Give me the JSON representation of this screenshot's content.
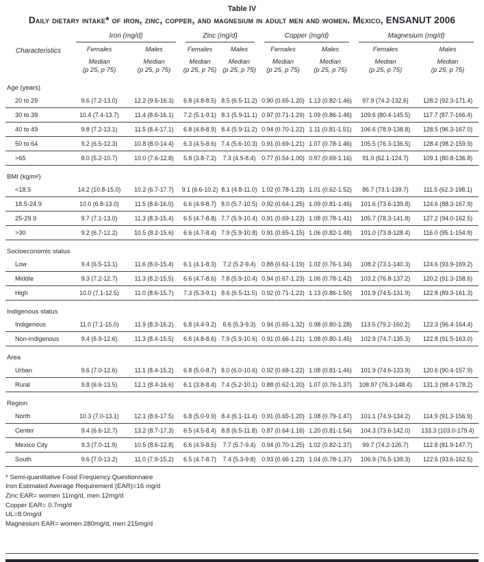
{
  "page": {
    "title": "Table IV",
    "subtitle": "Daily dietary intake* of iron, zinc, copper, and magnesium in adult men and women. Mexico, ENSANUT 2006"
  },
  "colors": {
    "text": "#24242c",
    "rule": "#3f3f47",
    "thick_rule": "#23232b"
  },
  "table": {
    "characteristics_header": "Characteristics",
    "groups": [
      "Iron (mg/d)",
      "Zinc (mg/d)",
      "Copper (mg/d)",
      "Magnesium (mg/d)"
    ],
    "sex_labels": [
      "Females",
      "Males"
    ],
    "median_label": "Median",
    "percentile_label": "(p 25, p 75)",
    "sections": [
      {
        "label": "Age (years)",
        "rows": [
          {
            "label": "20 to 29",
            "values": [
              "9.6 (7.2-13.0)",
              "12.2 (9.6-16.3)",
              "6.8 (4.8-8.5)",
              "8.5 (6.5-11.2)",
              "0.90 (0.65-1.20)",
              "1.13 (0.82-1.46)",
              "97.9 (74.2-132.6)",
              "128.2 (92.3-171.4)"
            ]
          },
          {
            "label": "30 to 39",
            "values": [
              "10.4 (7.4-13.7)",
              "11.4 (8.6-16.1)",
              "7.2 (5.1-9.1)",
              "8.1 (5.9-11.1)",
              "0.97 (0.71-1.29)",
              "1.09 (0.86-1.46)",
              "109.6 (80.4-145.5)",
              "117.7 (87.7-166.4)"
            ]
          },
          {
            "label": "40 to 49",
            "values": [
              "9.8 (7.2-13.1)",
              "11.5 (8.4-17.1)",
              "6.8 (4.8-8.9)",
              "8.4 (5.9-11.2)",
              "0.94 (0.70-1.22)",
              "1.11 (0.81-1.51)",
              "106.6 (78.9-138.8)",
              "128.5 (96.3-167.0)"
            ]
          },
          {
            "label": "50 to 64",
            "values": [
              "9.2 (6.5-12.3)",
              "10.8 (8.0-14.4)",
              "6.3 (4.5-8.6)",
              "7.4 (5.6-10.3)",
              "0.91 (0.69-1.21)",
              "1.07 (0.78-1.46)",
              "105.5 (76.3-136.5)",
              "128.4 (98.2-159.9)"
            ]
          },
          {
            "label": ">65",
            "values": [
              "8.0 (5.2-10.7)",
              "10.0 (7.6-12.8)",
              "5.8 (3.8-7.2)",
              "7.3 (4.9-8.4)",
              "0.77 (0.54-1.00)",
              "0.97 (0.69-1.16)",
              "91.0 (62.1-124.7)",
              "109.1 (80.8-136.8)"
            ]
          }
        ]
      },
      {
        "label": "BMI (kg/m²)",
        "rows": [
          {
            "label": "<18.5",
            "values": [
              "14.2 (10.8-15.0)",
              "10.2 (6.7-17.7)",
              "9.1 (6.6-10.2)",
              "8.1 (4.8-11.0)",
              "1.02 (0.78-1.23)",
              "1.01 (0.62-1.52)",
              "86.7 (73.1-139.7)",
              "111.5 (62.3-198.1)"
            ]
          },
          {
            "label": "18.5-24.9",
            "values": [
              "10.0 (6.8-13.0)",
              "11.5 (8.6-16.0)",
              "6.6 (4.9-8.7)",
              "8.0 (5.7-10.5)",
              "0.92 (0.64-1.25)",
              "1.09 (0.81-1.46)",
              "101.6 (73.6-139.8)",
              "124.6 (88.3-167.9)"
            ]
          },
          {
            "label": "25-29.9",
            "values": [
              "9.7 (7.1-13.0)",
              "11.3 (8.3-15.4)",
              "6.5 (4.7-8.8)",
              "7.7 (5.9-10.4)",
              "0.91 (0.69-1.23)",
              "1.08 (0.78-1.41)",
              "105.7 (78.3-141.8)",
              "127.2 (94.0-162.5)"
            ]
          },
          {
            "label": ">30",
            "values": [
              "9.2 (6.7-12.2)",
              "10.5 (8.2-15.6)",
              "6.6 (4.7-8.4)",
              "7.9 (5.9-10.8)",
              "0.91 (0.65-1.15)",
              "1.06 (0.82-1.48)",
              "101.0 (73.8-128.4)",
              "116.0 (95.1-154.9)"
            ]
          }
        ]
      },
      {
        "label": "Socioeconomic status",
        "rows": [
          {
            "label": "Low",
            "values": [
              "9.4 (6.5-13.1)",
              "11.6 (8.0-15.4)",
              "6.1 (4.1-8.3)",
              "7.2 (5.2-9.4)",
              "0.88 (0.61-1.19)",
              "1.02 (0.76-1.34)",
              "108.2 (73.1-140.3)",
              "124.6 (93.9-169.2)"
            ]
          },
          {
            "label": "Middle",
            "values": [
              "9.3 (7.2-12.7)",
              "11.3 (8.2-15.5)",
              "6.6 (4.7-8.6)",
              "7.8 (5.9-10.4)",
              "0.94 (0.67-1.23)",
              "1.06 (0.78-1.42)",
              "103.2 (76.8-137.2)",
              "120.2 (91.3-158.6)"
            ]
          },
          {
            "label": "High",
            "values": [
              "10.0 (7.1-12.5)",
              "11.0 (8.6-15.7)",
              "7.3 (5.3-9.1)",
              "8.6 (6.5-11.5)",
              "0.92 (0.71-1.23)",
              "1.13 (0.86-1.50)",
              "101.9 (74.5-131.9)",
              "122.8 (89.3-161.3)"
            ]
          }
        ]
      },
      {
        "label": "Indigenous status",
        "rows": [
          {
            "label": "Indigenous",
            "values": [
              "11.0 (7.1-15.0)",
              "11.9 (8.3-16.2)",
              "6.8 (4.4-9.2)",
              "6.6 (5.3-9.3)",
              "0.94 (0.65-1.32)",
              "0.98 (0.80-1.28)",
              "113.5 (79.2-160.2)",
              "122.3 (96.4-164.4)"
            ]
          },
          {
            "label": "Non-indigenous",
            "values": [
              "9.4 (6.9-12.6)",
              "11.3 (8.4-15.5)",
              "6.6 (4.8-8.6)",
              "7.9 (5.9-10.6)",
              "0.91 (0.66-1.21)",
              "1.08 (0.80-1.45)",
              "102.9 (74.7-135.3)",
              "122.8 (91.5-163.0)"
            ]
          }
        ]
      },
      {
        "label": "Area",
        "rows": [
          {
            "label": "Urban",
            "values": [
              "9.6 (7.0-12.6)",
              "11.1 (8.4-15.2)",
              "6.8 (5.0-8.7)",
              "8.0 (6.0-10.6)",
              "0.92 (0.68-1.22)",
              "1.08 (0.81-1.46)",
              "101.9 (74.6-133.9)",
              "120.6 (90.4-157.9)"
            ]
          },
          {
            "label": "Rural",
            "values": [
              "9.8 (6.6-13.5)",
              "12.1 (8.4-16.6)",
              "6.1 (3.8-8.4)",
              "7.4 (5.2-10.1)",
              "0.88 (0.62-1.20)",
              "1.07 (0.76-1.37)",
              "108.97 (76.3-148.4)",
              "131.3 (98.4-178.2)"
            ]
          }
        ]
      },
      {
        "label": "Region",
        "rows": [
          {
            "label": "North",
            "values": [
              "10.3 (7.0-13.1)",
              "12.1 (8.6-17.5)",
              "6.8 (5.0-9.9)",
              "8.4 (6.1-11.4)",
              "0.91 (0.65-1.20)",
              "1.08 (0.79-1.47)",
              "101.1 (74.9-134.2)",
              "114.9 (91.3-156.9)"
            ]
          },
          {
            "label": "Center",
            "values": [
              "9.4 (6.6-12.7)",
              "13.2 (8.7-17.3)",
              "6.5 (4.5-8.4)",
              "8.8 (6.5-11.8)",
              "0.87 (0.64-1.16)",
              "1.20 (0.81-1.54)",
              "104.3 (73.6-142.0)",
              "133.3 (103.0-179.4)"
            ]
          },
          {
            "label": "Mexico City",
            "values": [
              "9.3 (7.0-11.9)",
              "10.5 (8.6-12.8)",
              "6.6 (4.9-8.5)",
              "7.7 (5.7-9.4)",
              "0.94 (0.70-1.25)",
              "1.02 (0.82-1.37)",
              "99.7 (74.2-126.7)",
              "112.8 (81.9-147.7)"
            ]
          },
          {
            "label": "South",
            "values": [
              "9.6 (7.0-13.2)",
              "11.0 (7.9-15.2)",
              "6.5 (4.7-8.7)",
              "7.4 (5.3-9.8)",
              "0.93 (0.66-1.23)",
              "1.04 (0.78-1.37)",
              "106.9 (76.5-139.3)",
              "122.6 (93.6-162.5)"
            ]
          }
        ]
      }
    ]
  },
  "footnotes": [
    "* Semi-quantitative Food Frequency Questionnaire",
    "Iron Estimated Average Requirement (EAR)=16 mg/d",
    "Zinc EAR= women 11mg/d, men 12mg/d",
    "Copper EAR= 0.7mg/d",
    "UL=8.0mg/d",
    "Magnesium EAR= women 280mg/d, men 215mg/d"
  ]
}
